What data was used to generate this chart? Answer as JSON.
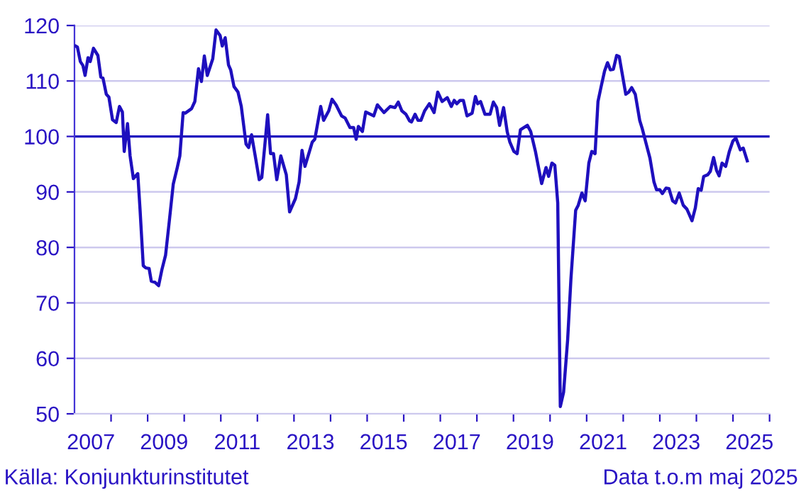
{
  "chart_data": {
    "type": "line",
    "annotations": [
      "Källa: Konjunkturinstitutet",
      "Data t.o.m maj 2025"
    ],
    "x": [
      2007.03,
      2007.08,
      2007.16,
      2007.23,
      2007.29,
      2007.37,
      2007.43,
      2007.52,
      2007.64,
      2007.72,
      2007.78,
      2007.87,
      2007.94,
      2008.04,
      2008.14,
      2008.23,
      2008.31,
      2008.36,
      2008.45,
      2008.52,
      2008.61,
      2008.73,
      2008.79,
      2008.88,
      2008.95,
      2009.04,
      2009.1,
      2009.2,
      2009.3,
      2009.39,
      2009.49,
      2009.59,
      2009.7,
      2009.81,
      2009.88,
      2009.97,
      2010.03,
      2010.2,
      2010.29,
      2010.39,
      2010.47,
      2010.55,
      2010.63,
      2010.78,
      2010.87,
      2010.98,
      2011.04,
      2011.12,
      2011.21,
      2011.27,
      2011.36,
      2011.47,
      2011.56,
      2011.69,
      2011.76,
      2011.84,
      2011.94,
      2012.05,
      2012.12,
      2012.2,
      2012.28,
      2012.36,
      2012.44,
      2012.53,
      2012.64,
      2012.79,
      2012.88,
      2013.04,
      2013.14,
      2013.22,
      2013.3,
      2013.5,
      2013.57,
      2013.73,
      2013.81,
      2013.95,
      2014.04,
      2014.15,
      2014.3,
      2014.4,
      2014.53,
      2014.63,
      2014.7,
      2014.76,
      2014.87,
      2014.96,
      2015.18,
      2015.28,
      2015.46,
      2015.63,
      2015.76,
      2015.85,
      2015.95,
      2016.06,
      2016.16,
      2016.21,
      2016.31,
      2016.39,
      2016.47,
      2016.57,
      2016.7,
      2016.83,
      2016.93,
      2017.05,
      2017.19,
      2017.3,
      2017.38,
      2017.45,
      2017.54,
      2017.63,
      2017.73,
      2017.87,
      2017.96,
      2018.02,
      2018.1,
      2018.22,
      2018.36,
      2018.45,
      2018.54,
      2018.62,
      2018.73,
      2018.83,
      2018.9,
      2019.01,
      2019.1,
      2019.19,
      2019.38,
      2019.47,
      2019.6,
      2019.77,
      2019.89,
      2019.96,
      2020.05,
      2020.13,
      2020.21,
      2020.28,
      2020.37,
      2020.48,
      2020.57,
      2020.7,
      2020.77,
      2020.87,
      2020.96,
      2021.06,
      2021.14,
      2021.23,
      2021.31,
      2021.39,
      2021.49,
      2021.57,
      2021.65,
      2021.73,
      2021.82,
      2021.89,
      2021.98,
      2022.07,
      2022.15,
      2022.23,
      2022.33,
      2022.45,
      2022.52,
      2022.63,
      2022.73,
      2022.84,
      2022.91,
      2023.0,
      2023.07,
      2023.17,
      2023.25,
      2023.35,
      2023.43,
      2023.53,
      2023.64,
      2023.74,
      2023.8,
      2023.88,
      2023.97,
      2024.05,
      2024.13,
      2024.2,
      2024.31,
      2024.38,
      2024.47,
      2024.55,
      2024.62,
      2024.7,
      2024.8,
      2024.9,
      2025.0,
      2025.08,
      2025.2,
      2025.28,
      2025.39
    ],
    "series": [
      {
        "color": "#1e0fbe",
        "values": [
          116.3,
          116.1,
          113.5,
          112.8,
          111.0,
          114.2,
          113.5,
          115.9,
          114.6,
          110.7,
          110.5,
          107.6,
          107.1,
          103.0,
          102.5,
          105.4,
          104.4,
          97.3,
          102.3,
          96.5,
          92.4,
          93.3,
          87.1,
          76.7,
          76.3,
          76.2,
          73.9,
          73.7,
          73.1,
          76.0,
          78.6,
          84.6,
          91.4,
          94.4,
          96.5,
          104.3,
          104.2,
          105.0,
          106.3,
          112.2,
          109.9,
          114.5,
          111.0,
          114.0,
          119.2,
          118.2,
          116.3,
          117.8,
          112.9,
          112.0,
          109.0,
          108.0,
          105.4,
          98.6,
          98.0,
          100.3,
          96.5,
          92.2,
          92.6,
          98.2,
          103.9,
          96.9,
          96.9,
          92.2,
          96.5,
          93.1,
          86.4,
          88.8,
          91.8,
          97.5,
          94.6,
          99.0,
          99.5,
          105.4,
          102.9,
          104.6,
          106.7,
          105.7,
          103.7,
          103.3,
          101.6,
          101.6,
          99.5,
          101.8,
          100.9,
          104.4,
          103.7,
          105.7,
          104.3,
          105.4,
          105.2,
          106.2,
          104.6,
          104.0,
          102.8,
          102.6,
          104.0,
          102.9,
          102.9,
          104.6,
          105.9,
          104.3,
          108.0,
          106.3,
          107.0,
          105.4,
          106.5,
          105.9,
          106.5,
          106.5,
          103.7,
          104.2,
          107.2,
          105.9,
          106.3,
          104.0,
          104.0,
          106.2,
          105.2,
          102.0,
          105.2,
          100.8,
          99.0,
          97.3,
          96.9,
          101.2,
          102.0,
          100.9,
          97.3,
          91.5,
          94.4,
          92.8,
          95.2,
          94.8,
          88.0,
          51.3,
          53.9,
          63.3,
          74.3,
          86.7,
          87.6,
          89.8,
          88.4,
          95.2,
          97.3,
          96.9,
          106.3,
          108.8,
          111.8,
          113.3,
          112.0,
          112.1,
          114.6,
          114.4,
          111.0,
          107.6,
          108.0,
          108.8,
          107.6,
          102.9,
          101.4,
          98.6,
          96.1,
          91.8,
          90.4,
          90.4,
          89.7,
          90.7,
          90.6,
          88.4,
          88.0,
          89.8,
          87.6,
          86.9,
          86.0,
          84.8,
          87.1,
          90.6,
          90.3,
          92.8,
          93.1,
          93.7,
          96.2,
          93.9,
          92.9,
          95.2,
          94.6,
          97.3,
          99.2,
          99.7,
          97.6,
          97.9,
          95.6
        ]
      }
    ],
    "xlim": [
      2007,
      2026
    ],
    "xticks": [
      {
        "value": 2007.45,
        "label": "2007"
      },
      {
        "value": 2009.45,
        "label": "2009"
      },
      {
        "value": 2011.45,
        "label": "2011"
      },
      {
        "value": 2013.45,
        "label": "2013"
      },
      {
        "value": 2015.45,
        "label": "2015"
      },
      {
        "value": 2017.45,
        "label": "2017"
      },
      {
        "value": 2019.45,
        "label": "2019"
      },
      {
        "value": 2021.45,
        "label": "2021"
      },
      {
        "value": 2023.45,
        "label": "2023"
      },
      {
        "value": 2025.45,
        "label": "2025"
      },
      {
        "value": 2008,
        "label": null
      },
      {
        "value": 2009,
        "label": null
      },
      {
        "value": 2010,
        "label": null
      },
      {
        "value": 2011,
        "label": null
      },
      {
        "value": 2012,
        "label": null
      },
      {
        "value": 2013,
        "label": null
      },
      {
        "value": 2014,
        "label": null
      },
      {
        "value": 2015,
        "label": null
      },
      {
        "value": 2016,
        "label": null
      },
      {
        "value": 2017,
        "label": null
      },
      {
        "value": 2018,
        "label": null
      },
      {
        "value": 2019,
        "label": null
      },
      {
        "value": 2020,
        "label": null
      },
      {
        "value": 2021,
        "label": null
      },
      {
        "value": 2022,
        "label": null
      },
      {
        "value": 2023,
        "label": null
      },
      {
        "value": 2024,
        "label": null
      },
      {
        "value": 2025,
        "label": null
      },
      {
        "value": 2026,
        "label": null
      }
    ],
    "ylim": [
      50,
      120
    ],
    "yticks": [
      50,
      60,
      70,
      80,
      90,
      100,
      110,
      120
    ],
    "ref_lines": [
      {
        "axis": "y",
        "value": 100,
        "color": "#1e0fbe"
      }
    ],
    "grid": "y",
    "legend": false,
    "marker": "none",
    "line_style": "solid"
  }
}
